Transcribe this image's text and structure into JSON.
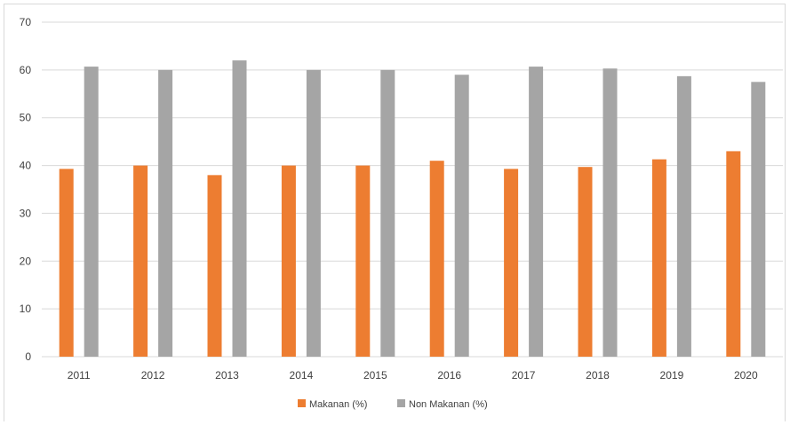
{
  "chart_data": {
    "type": "bar",
    "title": "",
    "xlabel": "",
    "ylabel": "",
    "categories": [
      "2011",
      "2012",
      "2013",
      "2014",
      "2015",
      "2016",
      "2017",
      "2018",
      "2019",
      "2020"
    ],
    "series": [
      {
        "name": "Makanan (%)",
        "color": "#ed7d31",
        "values": [
          39.3,
          40.0,
          38.0,
          40.0,
          40.0,
          41.0,
          39.3,
          39.7,
          41.3,
          43.0
        ]
      },
      {
        "name": "Non Makanan (%)",
        "color": "#a5a5a5",
        "values": [
          60.7,
          60.0,
          62.0,
          60.0,
          60.0,
          59.0,
          60.7,
          60.3,
          58.7,
          57.5
        ]
      }
    ],
    "ylim": [
      0,
      70
    ],
    "yticks": [
      "0",
      "10",
      "20",
      "30",
      "40",
      "50",
      "60",
      "70"
    ],
    "grid": true,
    "legend_position": "bottom"
  }
}
